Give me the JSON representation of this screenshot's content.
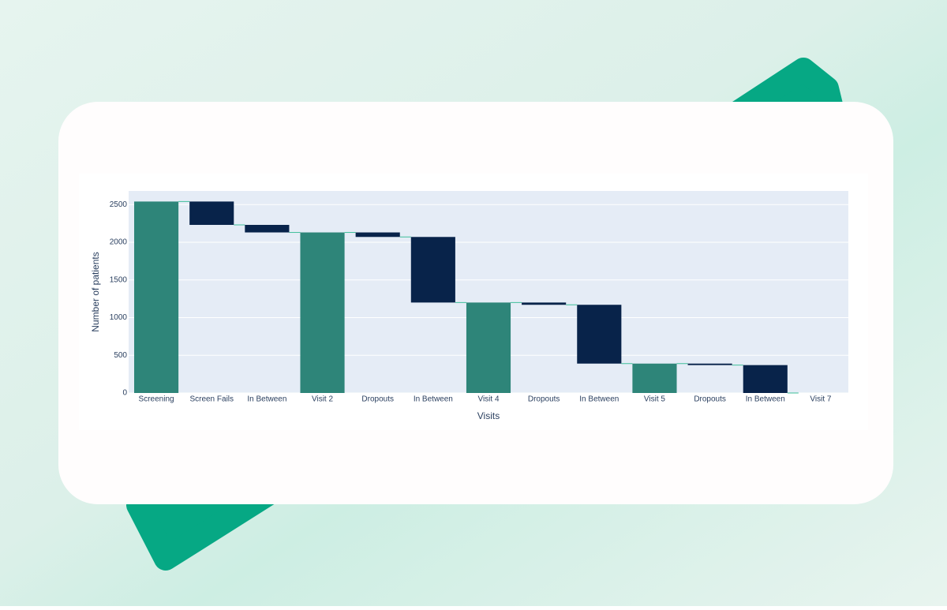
{
  "chart_data": {
    "type": "waterfall",
    "x_label": "Visits",
    "y_label": "Number of patients",
    "categories": [
      "Screening",
      "Screen Fails",
      "In Between",
      "Visit 2",
      "Dropouts",
      "In Between",
      "Visit 4",
      "Dropouts",
      "In Between",
      "Visit 5",
      "Dropouts",
      "In Between",
      "Visit 7"
    ],
    "measures": [
      "absolute",
      "relative",
      "relative",
      "absolute",
      "relative",
      "relative",
      "absolute",
      "relative",
      "relative",
      "absolute",
      "relative",
      "relative",
      "absolute"
    ],
    "values": [
      2540,
      -310,
      -100,
      2130,
      -60,
      -870,
      1200,
      -30,
      -780,
      390,
      -20,
      -370,
      0
    ],
    "total_color": "#2e8579",
    "decreasing_color": "#08234a",
    "connector_color": "#3fbf9a",
    "ylim": [
      0,
      2680
    ],
    "yticks": [
      0,
      500,
      1000,
      1500,
      2000,
      2500
    ],
    "grid": true
  }
}
